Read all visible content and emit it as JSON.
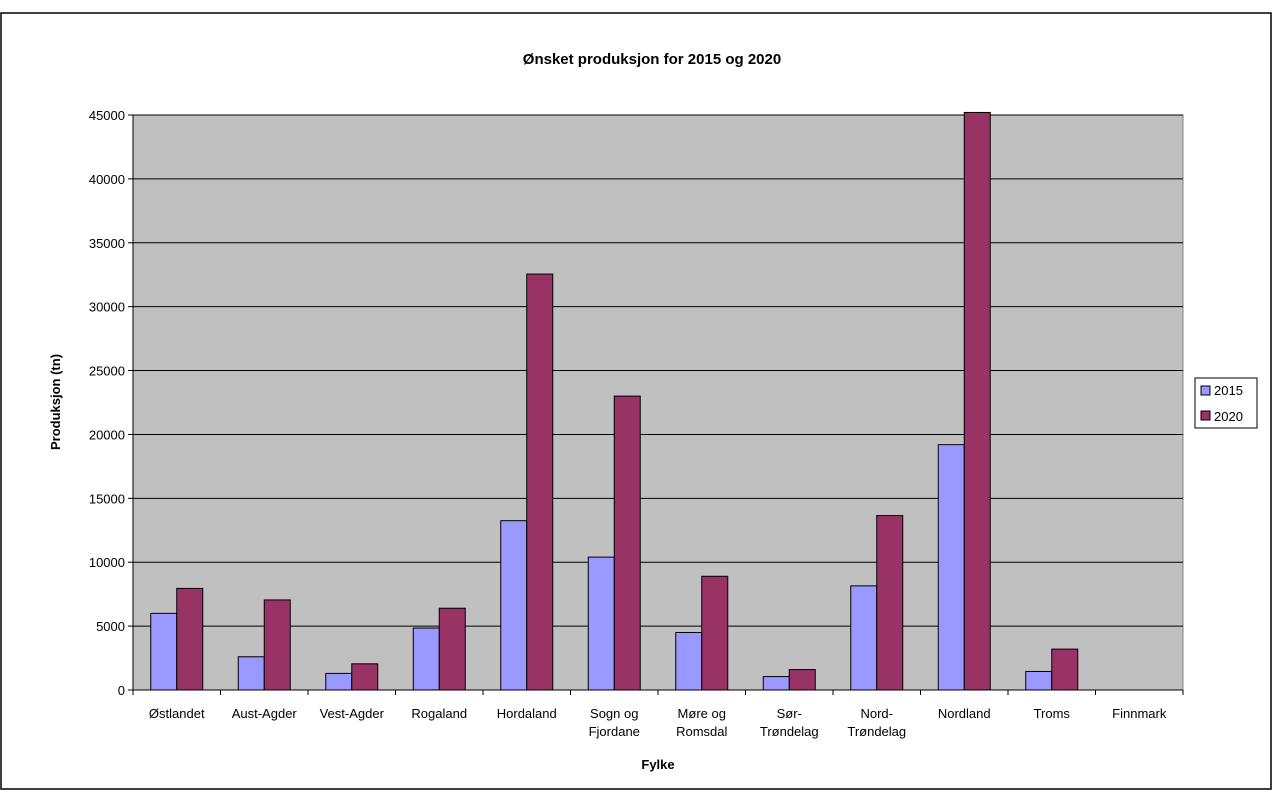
{
  "chart_data": {
    "type": "bar",
    "title": "Ønsket produksjon for 2015 og 2020",
    "xlabel": "Fylke",
    "ylabel": "Produksjon (tn)",
    "ylim": [
      0,
      45000
    ],
    "yticks": [
      0,
      5000,
      10000,
      15000,
      20000,
      25000,
      30000,
      35000,
      40000,
      45000
    ],
    "grid": true,
    "legend": "right",
    "plot_background": "#c0c0c0",
    "categories": [
      [
        "Østlandet"
      ],
      [
        "Aust-Agder"
      ],
      [
        "Vest-Agder"
      ],
      [
        "Rogaland"
      ],
      [
        "Hordaland"
      ],
      [
        "Sogn og",
        "Fjordane"
      ],
      [
        "Møre og",
        "Romsdal"
      ],
      [
        "Sør-",
        "Trøndelag"
      ],
      [
        "Nord-",
        "Trøndelag"
      ],
      [
        "Nordland"
      ],
      [
        "Troms"
      ],
      [
        "Finnmark"
      ]
    ],
    "series": [
      {
        "name": "2015",
        "color": "#9999ff",
        "values": [
          6000,
          2600,
          1300,
          4850,
          13250,
          10400,
          4500,
          1050,
          8150,
          19200,
          1450,
          0
        ]
      },
      {
        "name": "2020",
        "color": "#993366",
        "values": [
          7950,
          7050,
          2050,
          6400,
          32550,
          23000,
          8900,
          1600,
          13650,
          45200,
          3200,
          0
        ]
      }
    ]
  }
}
